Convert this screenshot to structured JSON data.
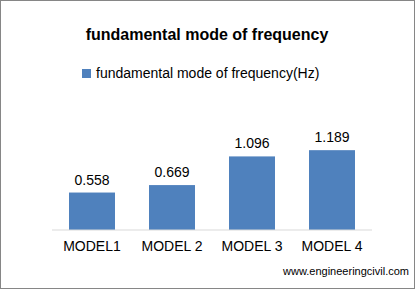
{
  "chart_data": {
    "type": "bar",
    "title": "fundamental mode of frequency",
    "categories": [
      "MODEL1",
      "MODEL 2",
      "MODEL 3",
      "MODEL 4"
    ],
    "series": [
      {
        "name": "fundamental mode of frequency(Hz)",
        "color": "#4f81bd",
        "values": [
          0.558,
          0.669,
          1.096,
          1.189
        ]
      }
    ],
    "ylim": [
      0,
      1.4
    ],
    "data_labels": true,
    "tick_labels": "x",
    "legend": "top",
    "annotations": [
      "www.engineeringcivil.com"
    ]
  }
}
